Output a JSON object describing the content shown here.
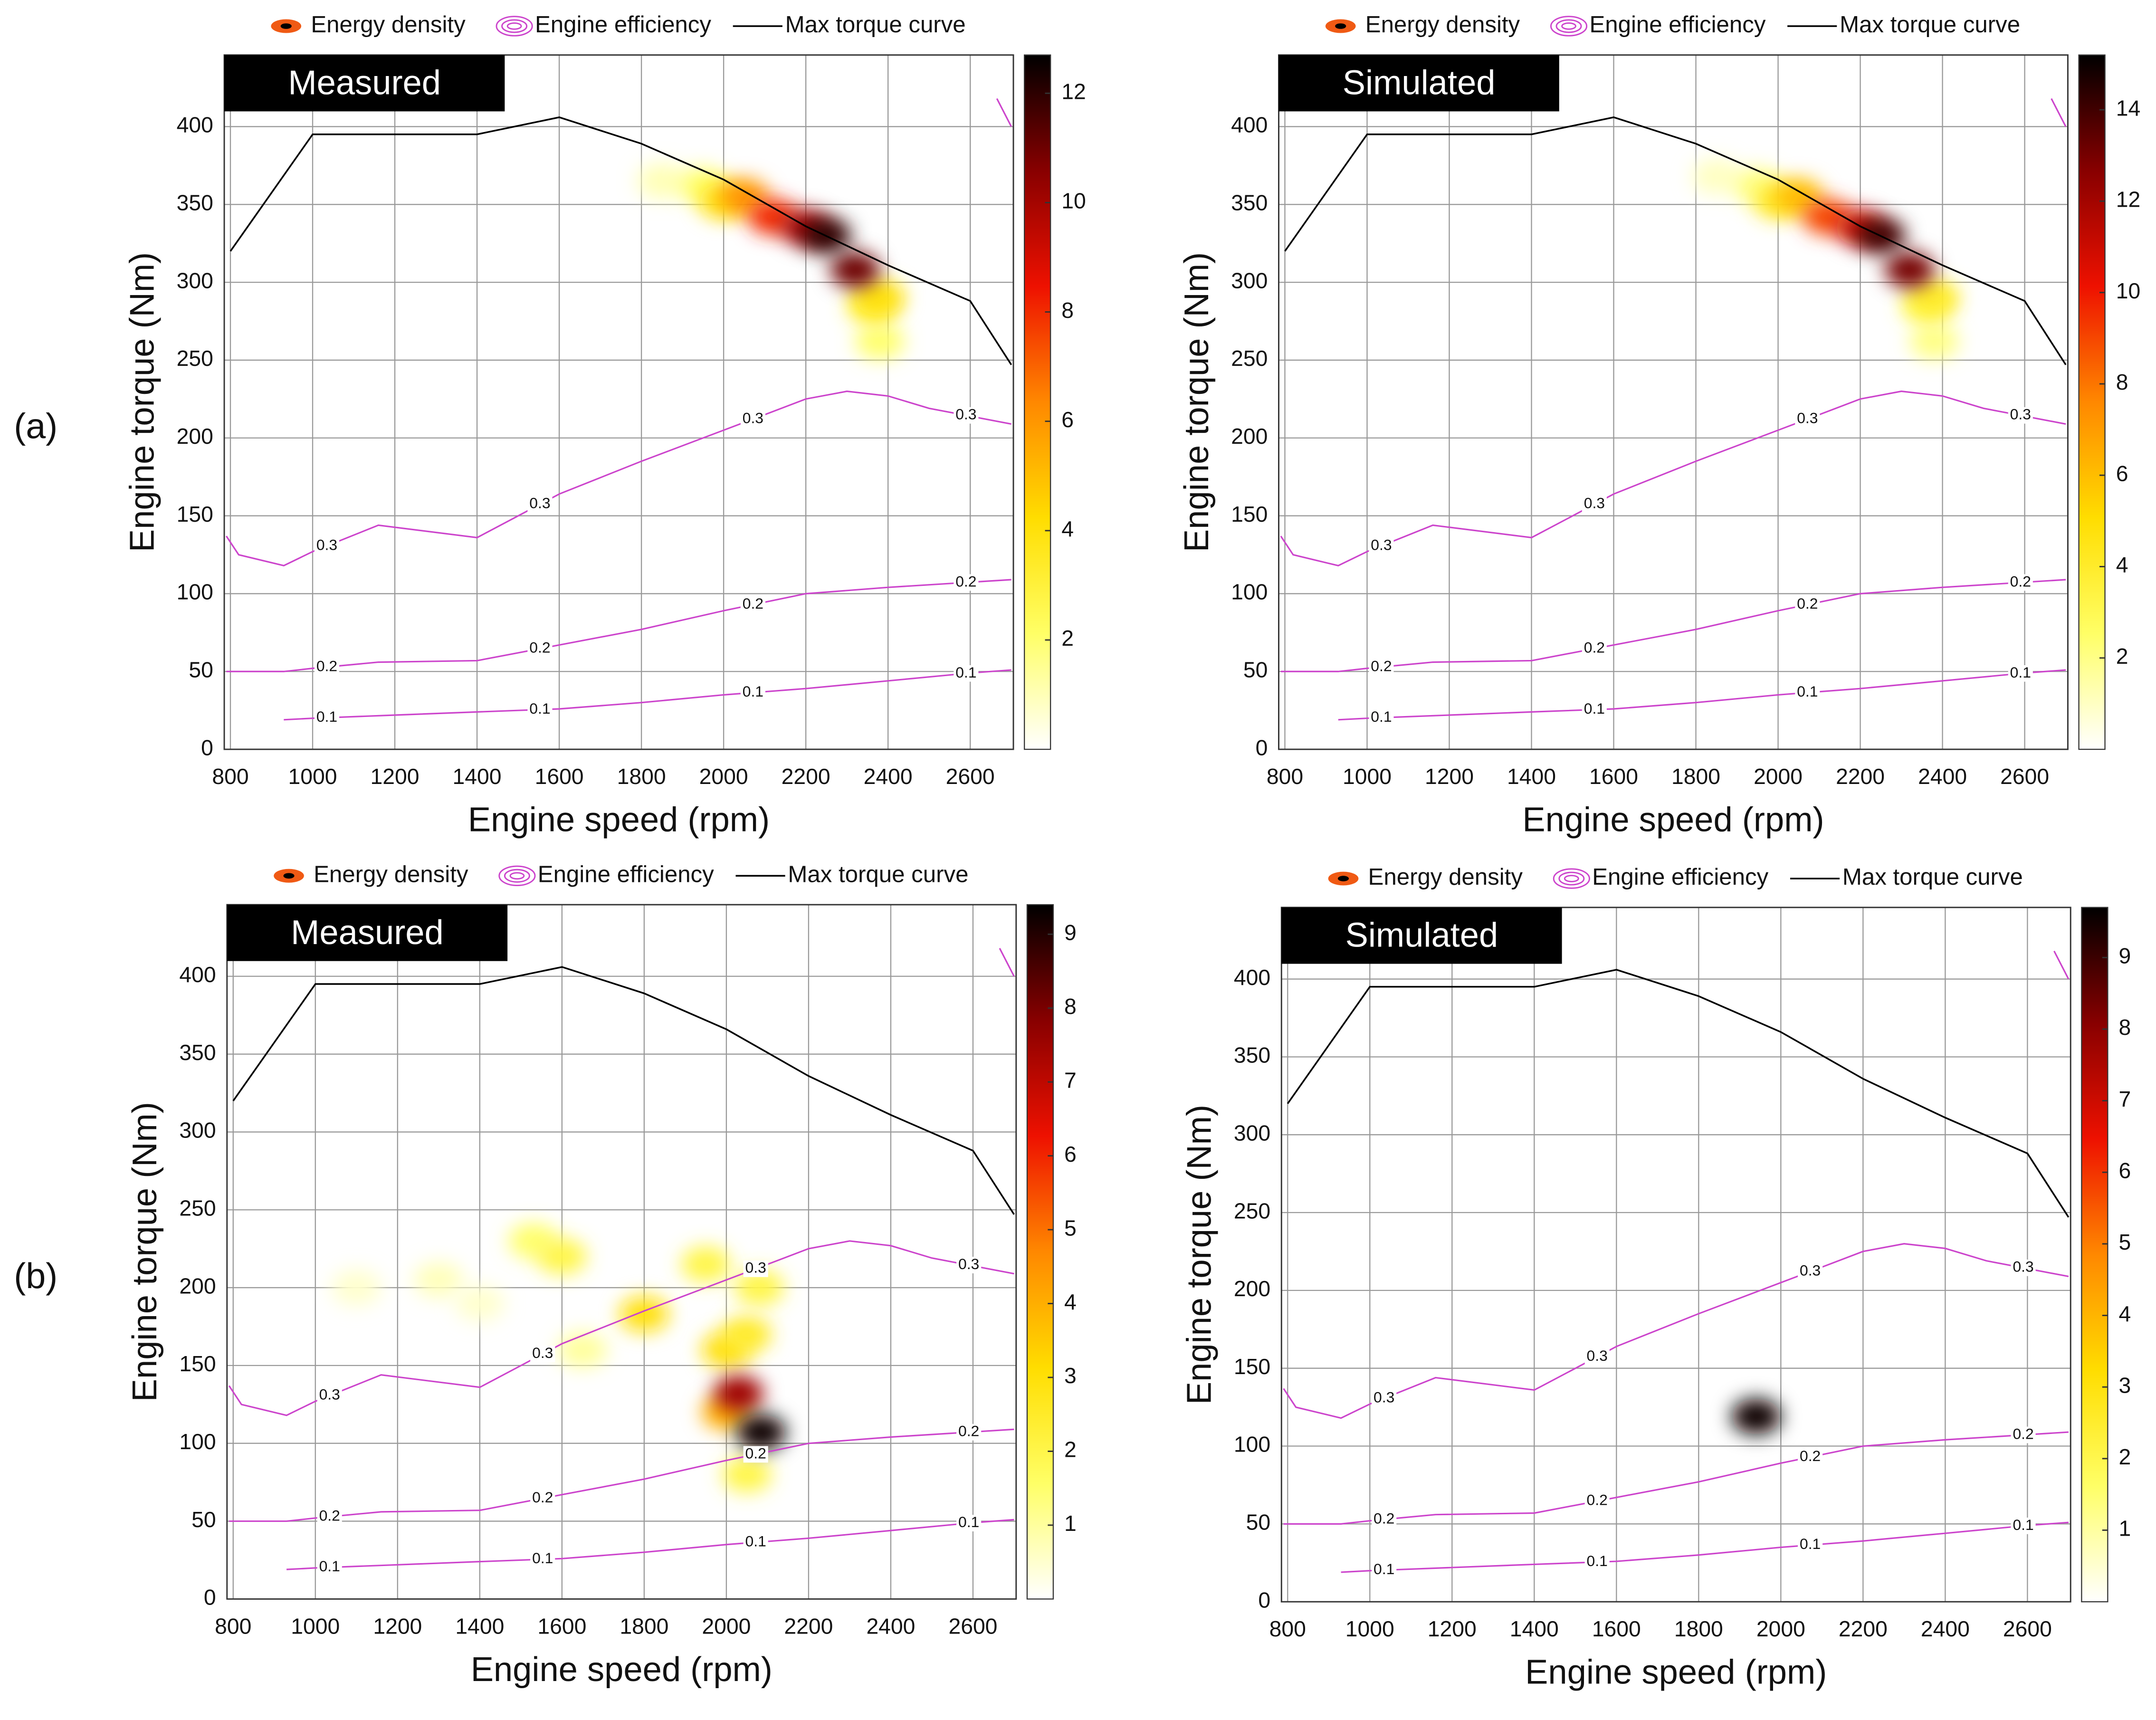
{
  "chart_data": [
    {
      "type": "contour",
      "panel_label": "(a)",
      "title": "Measured",
      "xlabel": "Engine speed (rpm)",
      "ylabel": "Engine torque (Nm)",
      "xlim": [
        785,
        2705
      ],
      "ylim": [
        0,
        446
      ],
      "xticks": [
        800,
        1000,
        1200,
        1400,
        1600,
        1800,
        2000,
        2200,
        2400,
        2600
      ],
      "yticks": [
        0,
        50,
        100,
        150,
        200,
        250,
        300,
        350,
        400
      ],
      "grid": true,
      "density": {
        "name": "Energy density",
        "x": [
          1850,
          1950,
          2380,
          2360,
          2000,
          2050,
          2120,
          2380,
          2200,
          2320,
          2250
        ],
        "y": [
          365,
          362,
          262,
          285,
          352,
          355,
          342,
          290,
          335,
          308,
          330
        ],
        "values": [
          1,
          2,
          2,
          3,
          4,
          6,
          8,
          4,
          10,
          11,
          12
        ]
      },
      "efficiency": {
        "name": "Engine efficiency",
        "color": "#cc44cc",
        "lines": [
          {
            "level": 0.3,
            "x": [
              790,
              820,
              930,
              1000,
              1160,
              1400,
              1500,
              1600,
              1800,
              2000,
              2100,
              2200,
              2300,
              2400,
              2500,
              2700,
              null,
              2665,
              2700
            ],
            "y": [
              137,
              125,
              118,
              127,
              144,
              136,
              150,
              164,
              185,
              205,
              215,
              225,
              230,
              227,
              219,
              209,
              null,
              418,
              400
            ]
          },
          {
            "level": 0.2,
            "x": [
              790,
              930,
              1000,
              1160,
              1400,
              1500,
              1600,
              1800,
              2000,
              2200,
              2400,
              2700
            ],
            "y": [
              50,
              50,
              52,
              56,
              57,
              62,
              67,
              77,
              89,
              100,
              104,
              109
            ]
          },
          {
            "level": 0.1,
            "x": [
              930,
              1000,
              1200,
              1400,
              1600,
              1800,
              2000,
              2200,
              2400,
              2600,
              2700
            ],
            "y": [
              19,
              20,
              22,
              24,
              26,
              30,
              35,
              39,
              44,
              49,
              51
            ]
          }
        ]
      },
      "torque": {
        "name": "Max torque curve",
        "color": "#000000",
        "x": [
          800,
          1000,
          1400,
          1600,
          1800,
          2000,
          2200,
          2400,
          2600,
          2700
        ],
        "y": [
          320,
          395,
          395,
          406,
          389,
          366,
          336,
          311,
          288,
          247
        ]
      },
      "colormap": [
        "#ffffff",
        "#ffff66",
        "#ffdd00",
        "#ff8800",
        "#ee1100",
        "#880000",
        "#000000"
      ],
      "clim": [
        0,
        12.7
      ],
      "cticks": [
        2,
        4,
        6,
        8,
        10,
        12
      ]
    },
    {
      "type": "contour",
      "title": "Simulated",
      "xlabel": "Engine speed (rpm)",
      "ylabel": "Engine torque (Nm)",
      "xlim": [
        785,
        2705
      ],
      "ylim": [
        0,
        446
      ],
      "xticks": [
        800,
        1000,
        1200,
        1400,
        1600,
        1800,
        2000,
        2200,
        2400,
        2600
      ],
      "yticks": [
        0,
        50,
        100,
        150,
        200,
        250,
        300,
        350,
        400
      ],
      "grid": true,
      "density": {
        "name": "Energy density",
        "x": [
          1850,
          1950,
          2380,
          2360,
          2000,
          2050,
          2120,
          2380,
          2200,
          2320,
          2250
        ],
        "y": [
          368,
          362,
          262,
          285,
          352,
          355,
          342,
          290,
          335,
          308,
          330
        ],
        "values": [
          1,
          2,
          2,
          3,
          4,
          6,
          9,
          4,
          11,
          13,
          14
        ]
      },
      "efficiency": {
        "name": "Engine efficiency",
        "color": "#cc44cc",
        "lines": [
          {
            "level": 0.3,
            "x": [
              790,
              820,
              930,
              1000,
              1160,
              1400,
              1500,
              1600,
              1800,
              2000,
              2100,
              2200,
              2300,
              2400,
              2500,
              2700,
              null,
              2665,
              2700
            ],
            "y": [
              137,
              125,
              118,
              127,
              144,
              136,
              150,
              164,
              185,
              205,
              215,
              225,
              230,
              227,
              219,
              209,
              null,
              418,
              400
            ]
          },
          {
            "level": 0.2,
            "x": [
              790,
              930,
              1000,
              1160,
              1400,
              1500,
              1600,
              1800,
              2000,
              2200,
              2400,
              2700
            ],
            "y": [
              50,
              50,
              52,
              56,
              57,
              62,
              67,
              77,
              89,
              100,
              104,
              109
            ]
          },
          {
            "level": 0.1,
            "x": [
              930,
              1000,
              1200,
              1400,
              1600,
              1800,
              2000,
              2200,
              2400,
              2600,
              2700
            ],
            "y": [
              19,
              20,
              22,
              24,
              26,
              30,
              35,
              39,
              44,
              49,
              51
            ]
          }
        ]
      },
      "torque": {
        "name": "Max torque curve",
        "color": "#000000",
        "x": [
          800,
          1000,
          1400,
          1600,
          1800,
          2000,
          2200,
          2400,
          2600,
          2700
        ],
        "y": [
          320,
          395,
          395,
          406,
          389,
          366,
          336,
          311,
          288,
          247
        ]
      },
      "colormap": [
        "#ffffff",
        "#ffff66",
        "#ffdd00",
        "#ff8800",
        "#ee1100",
        "#880000",
        "#000000"
      ],
      "clim": [
        0,
        15.2
      ],
      "cticks": [
        2,
        4,
        6,
        8,
        10,
        12,
        14
      ]
    },
    {
      "type": "contour",
      "panel_label": "(b)",
      "title": "Measured",
      "xlabel": "Engine speed (rpm)",
      "ylabel": "Engine torque (Nm)",
      "xlim": [
        785,
        2705
      ],
      "ylim": [
        0,
        446
      ],
      "xticks": [
        800,
        1000,
        1200,
        1400,
        1600,
        1800,
        2000,
        2200,
        2400,
        2600
      ],
      "yticks": [
        0,
        50,
        100,
        150,
        200,
        250,
        300,
        350,
        400
      ],
      "grid": true,
      "density": {
        "name": "Energy density",
        "x": [
          1100,
          1300,
          1400,
          1650,
          1530,
          1600,
          2080,
          1950,
          2050,
          1800,
          2000,
          2050,
          2000,
          2030,
          2085
        ],
        "y": [
          200,
          205,
          190,
          160,
          230,
          220,
          200,
          215,
          80,
          183,
          160,
          170,
          120,
          132,
          107
        ],
        "values": [
          0.5,
          0.7,
          0.5,
          1,
          1.5,
          2,
          2,
          2,
          2,
          3,
          3,
          2.5,
          4,
          7.5,
          9.3
        ]
      },
      "efficiency": {
        "name": "Engine efficiency",
        "color": "#cc44cc",
        "lines": [
          {
            "level": 0.3,
            "x": [
              790,
              820,
              930,
              1000,
              1160,
              1400,
              1500,
              1600,
              1800,
              2000,
              2100,
              2200,
              2300,
              2400,
              2500,
              2700,
              null,
              2665,
              2700
            ],
            "y": [
              137,
              125,
              118,
              127,
              144,
              136,
              150,
              164,
              185,
              205,
              215,
              225,
              230,
              227,
              219,
              209,
              null,
              418,
              400
            ]
          },
          {
            "level": 0.2,
            "x": [
              790,
              930,
              1000,
              1160,
              1400,
              1500,
              1600,
              1800,
              2000,
              2200,
              2400,
              2700
            ],
            "y": [
              50,
              50,
              52,
              56,
              57,
              62,
              67,
              77,
              89,
              100,
              104,
              109
            ]
          },
          {
            "level": 0.1,
            "x": [
              930,
              1000,
              1200,
              1400,
              1600,
              1800,
              2000,
              2200,
              2400,
              2600,
              2700
            ],
            "y": [
              19,
              20,
              22,
              24,
              26,
              30,
              35,
              39,
              44,
              49,
              51
            ]
          }
        ]
      },
      "torque": {
        "name": "Max torque curve",
        "color": "#000000",
        "x": [
          800,
          1000,
          1400,
          1600,
          1800,
          2000,
          2200,
          2400,
          2600,
          2700
        ],
        "y": [
          320,
          395,
          395,
          406,
          389,
          366,
          336,
          311,
          288,
          247
        ]
      },
      "colormap": [
        "#ffffff",
        "#ffff66",
        "#ffdd00",
        "#ff8800",
        "#ee1100",
        "#880000",
        "#000000"
      ],
      "clim": [
        0,
        9.4
      ],
      "cticks": [
        1,
        2,
        3,
        4,
        5,
        6,
        7,
        8,
        9
      ]
    },
    {
      "type": "contour",
      "title": "Simulated",
      "xlabel": "Engine speed (rpm)",
      "ylabel": "Engine torque (Nm)",
      "xlim": [
        785,
        2705
      ],
      "ylim": [
        0,
        446
      ],
      "xticks": [
        800,
        1000,
        1200,
        1400,
        1600,
        1800,
        2000,
        2200,
        2400,
        2600
      ],
      "yticks": [
        0,
        50,
        100,
        150,
        200,
        250,
        300,
        350,
        400
      ],
      "grid": true,
      "density": {
        "name": "Energy density",
        "x": [
          1940
        ],
        "y": [
          119
        ],
        "values": [
          9.5
        ]
      },
      "efficiency": {
        "name": "Engine efficiency",
        "color": "#cc44cc",
        "lines": [
          {
            "level": 0.3,
            "x": [
              790,
              820,
              930,
              1000,
              1160,
              1400,
              1500,
              1600,
              1800,
              2000,
              2100,
              2200,
              2300,
              2400,
              2500,
              2700,
              null,
              2665,
              2700
            ],
            "y": [
              137,
              125,
              118,
              127,
              144,
              136,
              150,
              164,
              185,
              205,
              215,
              225,
              230,
              227,
              219,
              209,
              null,
              418,
              400
            ]
          },
          {
            "level": 0.2,
            "x": [
              790,
              930,
              1000,
              1160,
              1400,
              1500,
              1600,
              1800,
              2000,
              2200,
              2400,
              2700
            ],
            "y": [
              50,
              50,
              52,
              56,
              57,
              62,
              67,
              77,
              89,
              100,
              104,
              109
            ]
          },
          {
            "level": 0.1,
            "x": [
              930,
              1000,
              1200,
              1400,
              1600,
              1800,
              2000,
              2200,
              2400,
              2600,
              2700
            ],
            "y": [
              19,
              20,
              22,
              24,
              26,
              30,
              35,
              39,
              44,
              49,
              51
            ]
          }
        ]
      },
      "torque": {
        "name": "Max torque curve",
        "color": "#000000",
        "x": [
          800,
          1000,
          1400,
          1600,
          1800,
          2000,
          2200,
          2400,
          2600,
          2700
        ],
        "y": [
          320,
          395,
          395,
          406,
          389,
          366,
          336,
          311,
          288,
          247
        ]
      },
      "colormap": [
        "#ffffff",
        "#ffff66",
        "#ffdd00",
        "#ff8800",
        "#ee1100",
        "#880000",
        "#000000"
      ],
      "clim": [
        0,
        9.7
      ],
      "cticks": [
        1,
        2,
        3,
        4,
        5,
        6,
        7,
        8,
        9
      ]
    }
  ]
}
